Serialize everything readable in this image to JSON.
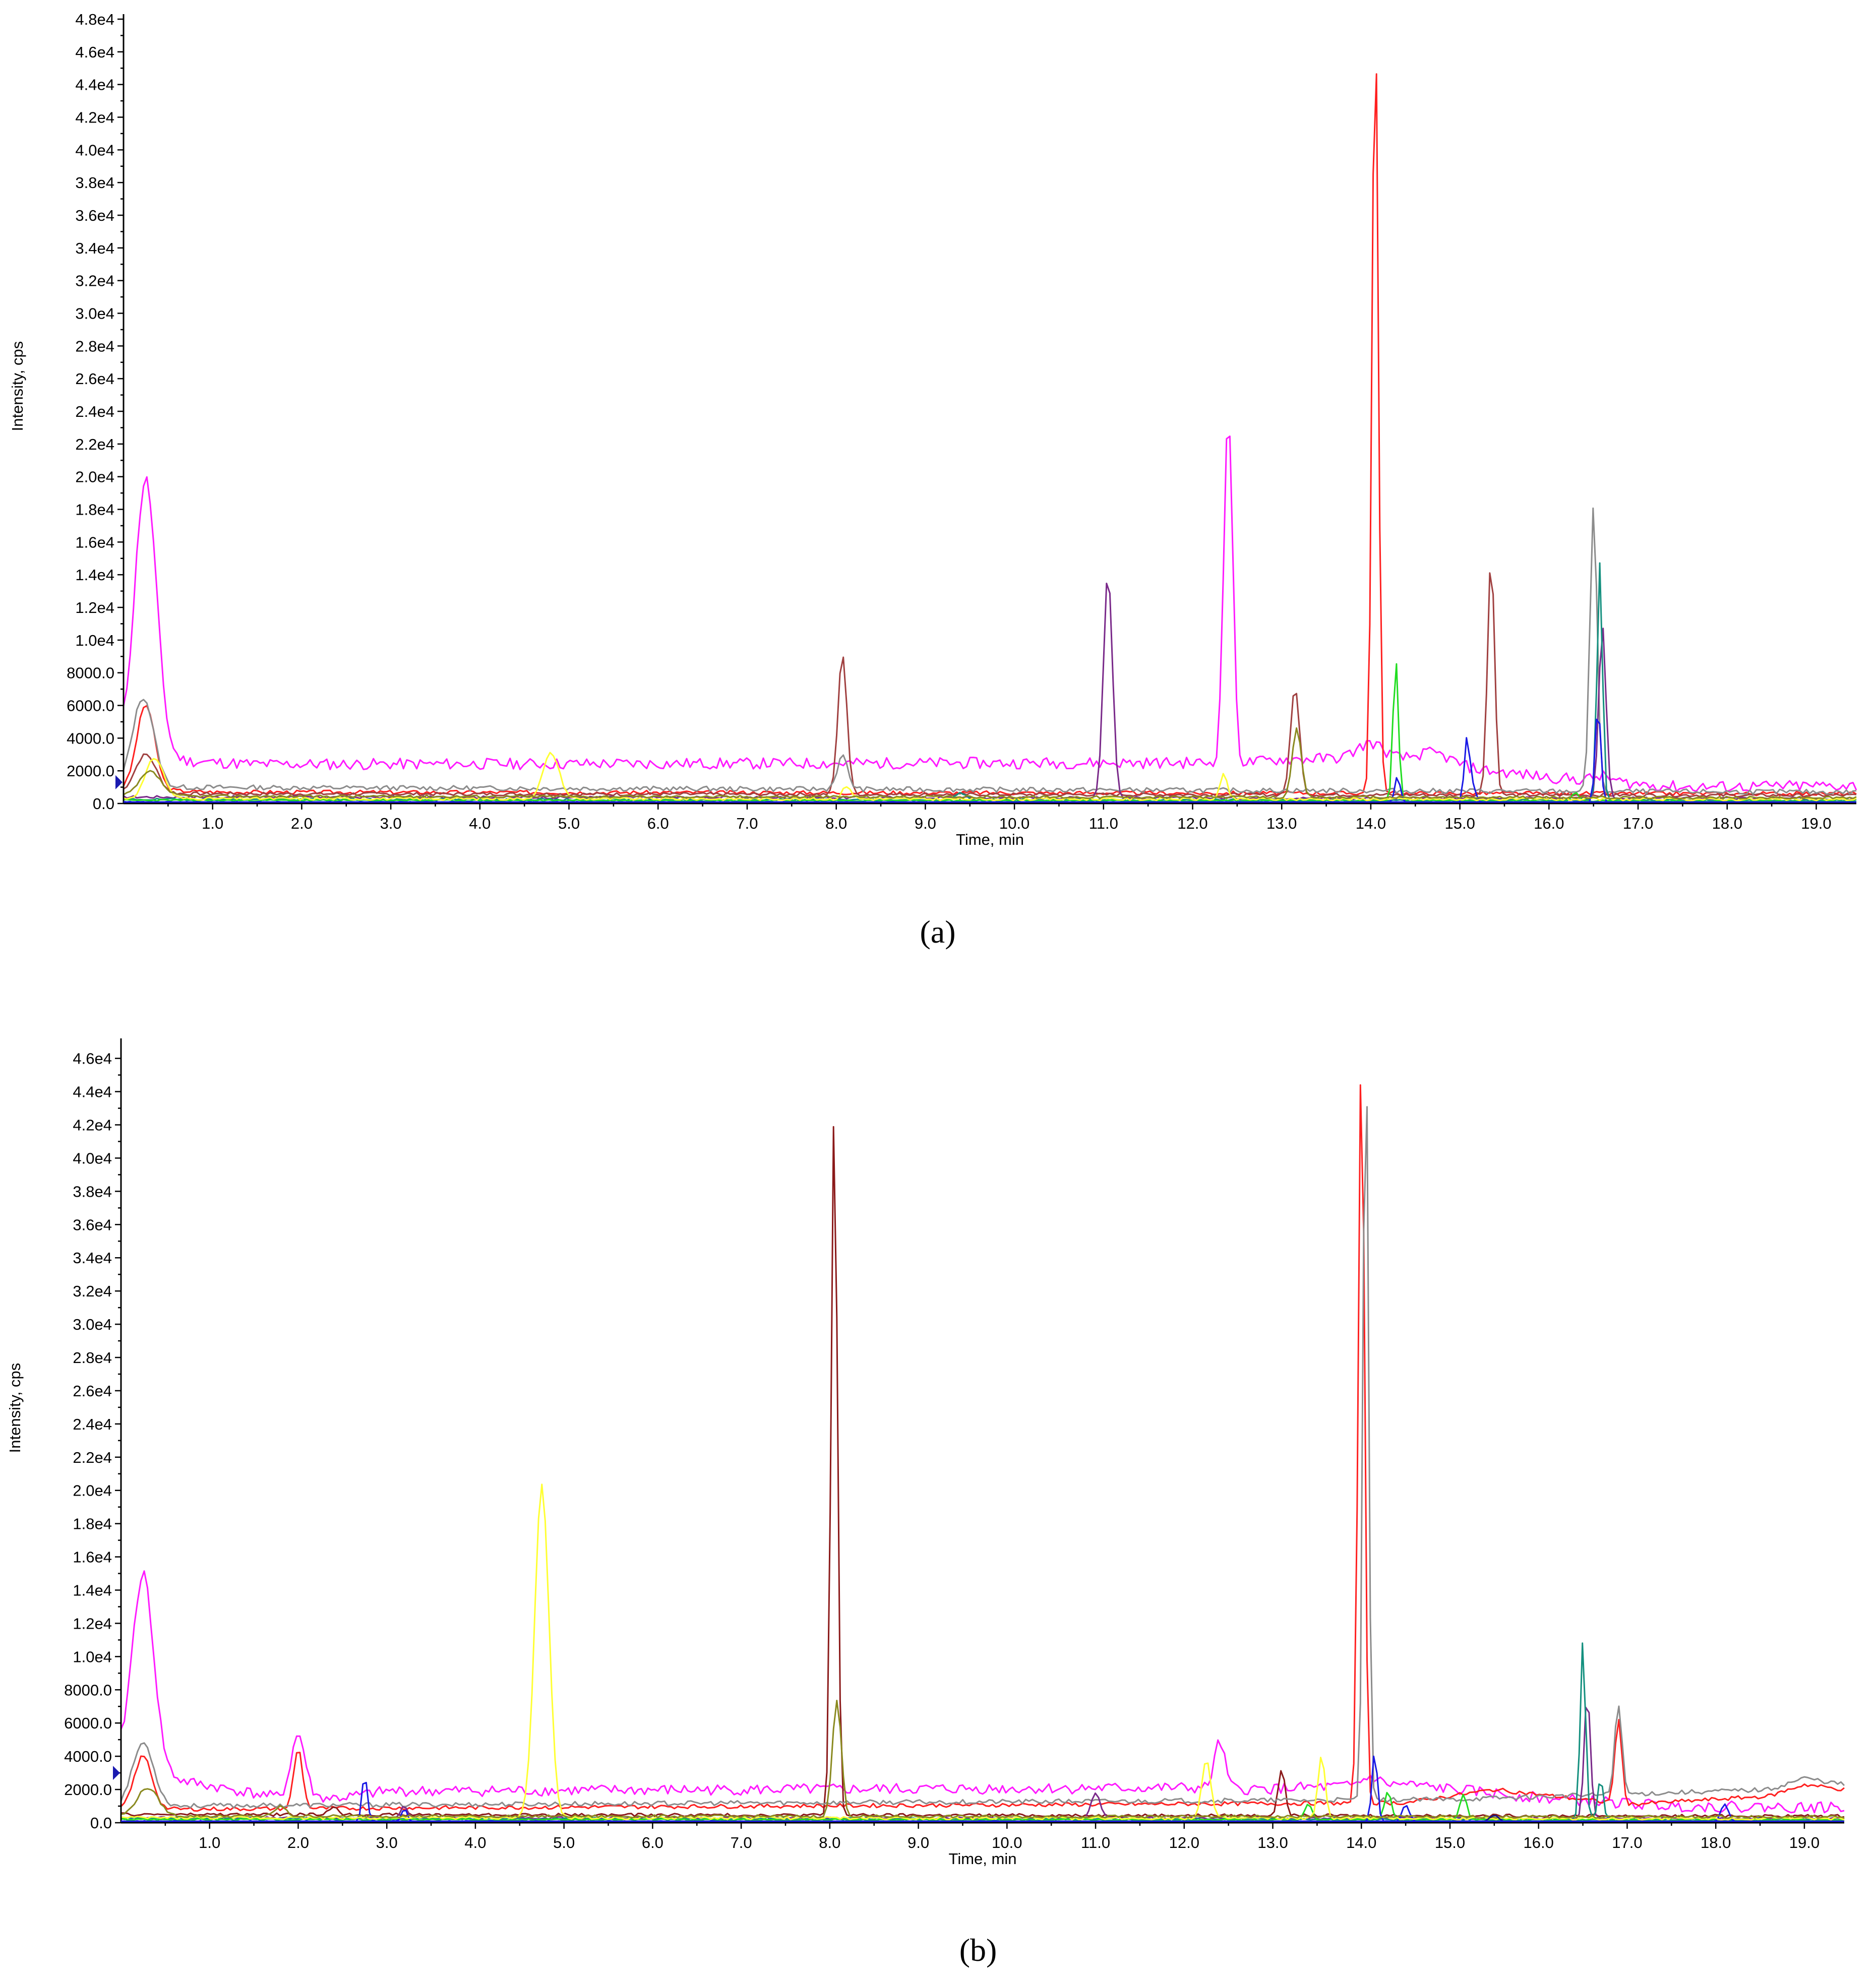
{
  "colors": {
    "magenta": "#ff1aff",
    "red": "#ff2020",
    "darkred": "#8b1a1a",
    "brown": "#a04040",
    "gray": "#8c8c8c",
    "yellow": "#ffff33",
    "green": "#22dd22",
    "teal": "#14907f",
    "blue": "#1a1ae6",
    "purple": "#7a2a8a",
    "olive": "#8a8a20",
    "navy": "#1a1a80"
  },
  "chart_data": [
    {
      "type": "line",
      "caption": "(a)",
      "xlabel": "Time, min",
      "ylabel": "Intensity, cps",
      "xlim": [
        0,
        19.45
      ],
      "ylim": [
        0,
        48000
      ],
      "x_ticks": [
        "1.0",
        "2.0",
        "3.0",
        "4.0",
        "5.0",
        "6.0",
        "7.0",
        "8.0",
        "9.0",
        "10.0",
        "11.0",
        "12.0",
        "13.0",
        "14.0",
        "15.0",
        "16.0",
        "17.0",
        "18.0",
        "19.0"
      ],
      "y_ticks": [
        {
          "v": 0,
          "label": "0.0"
        },
        {
          "v": 2000,
          "label": "2000.0"
        },
        {
          "v": 4000,
          "label": "4000.0"
        },
        {
          "v": 6000,
          "label": "6000.0"
        },
        {
          "v": 8000,
          "label": "8000.0"
        },
        {
          "v": 10000,
          "label": "1.0e4"
        },
        {
          "v": 12000,
          "label": "1.2e4"
        },
        {
          "v": 14000,
          "label": "1.4e4"
        },
        {
          "v": 16000,
          "label": "1.6e4"
        },
        {
          "v": 18000,
          "label": "1.8e4"
        },
        {
          "v": 20000,
          "label": "2.0e4"
        },
        {
          "v": 22000,
          "label": "2.2e4"
        },
        {
          "v": 24000,
          "label": "2.4e4"
        },
        {
          "v": 26000,
          "label": "2.6e4"
        },
        {
          "v": 28000,
          "label": "2.8e4"
        },
        {
          "v": 30000,
          "label": "3.0e4"
        },
        {
          "v": 32000,
          "label": "3.2e4"
        },
        {
          "v": 34000,
          "label": "3.4e4"
        },
        {
          "v": 36000,
          "label": "3.6e4"
        },
        {
          "v": 38000,
          "label": "3.8e4"
        },
        {
          "v": 40000,
          "label": "4.0e4"
        },
        {
          "v": 42000,
          "label": "4.2e4"
        },
        {
          "v": 44000,
          "label": "4.4e4"
        },
        {
          "v": 46000,
          "label": "4.6e4"
        },
        {
          "v": 48000,
          "label": "4.8e4"
        }
      ],
      "marker_y": 1300,
      "series": [
        {
          "color": "magenta",
          "base": 2400,
          "noise": 350,
          "seed": 11,
          "peaks": [
            [
              0.25,
              16500,
              0.12
            ],
            [
              12.4,
              21500,
              0.05
            ],
            [
              14.0,
              900,
              0.15
            ],
            [
              14.7,
              700,
              0.2
            ],
            [
              16.6,
              300,
              0.1
            ]
          ],
          "envelope": [
            [
              0,
              3800
            ],
            [
              0.7,
              2600
            ],
            [
              1.5,
              2400
            ],
            [
              12.6,
              2500
            ],
            [
              13.0,
              2700
            ],
            [
              14.0,
              2800
            ],
            [
              16.0,
              1600
            ],
            [
              17.5,
              1000
            ],
            [
              19.45,
              1100
            ]
          ]
        },
        {
          "color": "red",
          "base": 700,
          "noise": 120,
          "seed": 3,
          "peaks": [
            [
              0.25,
              5200,
              0.1
            ],
            [
              14.05,
              47500,
              0.035
            ]
          ],
          "envelope": [
            [
              0,
              900
            ],
            [
              1,
              700
            ],
            [
              19.45,
              600
            ]
          ]
        },
        {
          "color": "brown",
          "base": 550,
          "noise": 100,
          "seed": 7,
          "peaks": [
            [
              8.07,
              8600,
              0.05
            ],
            [
              13.15,
              6600,
              0.05
            ],
            [
              15.35,
              14500,
              0.04
            ],
            [
              0.25,
              2400,
              0.12
            ]
          ],
          "envelope": [
            [
              0,
              600
            ],
            [
              19.45,
              500
            ]
          ]
        },
        {
          "color": "gray",
          "base": 850,
          "noise": 150,
          "seed": 13,
          "peaks": [
            [
              0.22,
              5500,
              0.12
            ],
            [
              8.07,
              2000,
              0.06
            ],
            [
              16.5,
              17500,
              0.04
            ]
          ],
          "envelope": [
            [
              0,
              1000
            ],
            [
              19.45,
              700
            ]
          ]
        },
        {
          "color": "purple",
          "base": 300,
          "noise": 80,
          "seed": 17,
          "peaks": [
            [
              11.05,
              13800,
              0.05
            ],
            [
              16.6,
              10500,
              0.04
            ]
          ],
          "envelope": [
            [
              0,
              400
            ],
            [
              19.45,
              300
            ]
          ]
        },
        {
          "color": "teal",
          "base": 200,
          "noise": 60,
          "seed": 19,
          "peaks": [
            [
              16.57,
              14500,
              0.03
            ],
            [
              9.4,
              400,
              0.06
            ]
          ],
          "envelope": [
            [
              0,
              250
            ],
            [
              19.45,
              200
            ]
          ]
        },
        {
          "color": "green",
          "base": 150,
          "noise": 50,
          "seed": 23,
          "peaks": [
            [
              14.28,
              8700,
              0.03
            ],
            [
              16.3,
              500,
              0.04
            ]
          ],
          "envelope": [
            [
              0,
              200
            ],
            [
              19.45,
              150
            ]
          ]
        },
        {
          "color": "blue",
          "base": 60,
          "noise": 40,
          "seed": 29,
          "peaks": [
            [
              15.08,
              4000,
              0.03
            ],
            [
              14.3,
              1600,
              0.03
            ],
            [
              16.55,
              6000,
              0.03
            ],
            [
              15.15,
              900,
              0.03
            ]
          ],
          "envelope": [
            [
              0,
              80
            ],
            [
              19.45,
              60
            ]
          ]
        },
        {
          "color": "yellow",
          "base": 250,
          "noise": 80,
          "seed": 31,
          "peaks": [
            [
              0.35,
              2500,
              0.1
            ],
            [
              4.8,
              2800,
              0.09
            ],
            [
              8.12,
              800,
              0.05
            ],
            [
              12.35,
              1500,
              0.04
            ]
          ],
          "envelope": [
            [
              0,
              300
            ],
            [
              19.45,
              250
            ]
          ]
        },
        {
          "color": "olive",
          "base": 400,
          "noise": 80,
          "seed": 37,
          "peaks": [
            [
              13.17,
              4200,
              0.05
            ],
            [
              0.3,
              1500,
              0.12
            ]
          ],
          "envelope": [
            [
              0,
              450
            ],
            [
              19.45,
              350
            ]
          ]
        }
      ]
    },
    {
      "type": "line",
      "caption": "(b)",
      "xlabel": "Time, min",
      "ylabel": "Intensity, cps",
      "xlim": [
        0,
        19.45
      ],
      "ylim": [
        0,
        46900
      ],
      "x_ticks": [
        "1.0",
        "2.0",
        "3.0",
        "4.0",
        "5.0",
        "6.0",
        "7.0",
        "8.0",
        "9.0",
        "10.0",
        "11.0",
        "12.0",
        "13.0",
        "14.0",
        "15.0",
        "16.0",
        "17.0",
        "18.0",
        "19.0"
      ],
      "y_ticks": [
        {
          "v": 0,
          "label": "0.0"
        },
        {
          "v": 2000,
          "label": "2000.0"
        },
        {
          "v": 4000,
          "label": "4000.0"
        },
        {
          "v": 6000,
          "label": "6000.0"
        },
        {
          "v": 8000,
          "label": "8000.0"
        },
        {
          "v": 10000,
          "label": "1.0e4"
        },
        {
          "v": 12000,
          "label": "1.2e4"
        },
        {
          "v": 14000,
          "label": "1.4e4"
        },
        {
          "v": 16000,
          "label": "1.6e4"
        },
        {
          "v": 18000,
          "label": "1.8e4"
        },
        {
          "v": 20000,
          "label": "2.0e4"
        },
        {
          "v": 22000,
          "label": "2.2e4"
        },
        {
          "v": 24000,
          "label": "2.4e4"
        },
        {
          "v": 26000,
          "label": "2.6e4"
        },
        {
          "v": 28000,
          "label": "2.8e4"
        },
        {
          "v": 30000,
          "label": "3.0e4"
        },
        {
          "v": 32000,
          "label": "3.2e4"
        },
        {
          "v": 34000,
          "label": "3.4e4"
        },
        {
          "v": 36000,
          "label": "3.6e4"
        },
        {
          "v": 38000,
          "label": "3.8e4"
        },
        {
          "v": 40000,
          "label": "4.0e4"
        },
        {
          "v": 42000,
          "label": "4.2e4"
        },
        {
          "v": 44000,
          "label": "4.4e4"
        },
        {
          "v": 46000,
          "label": "4.6e4"
        }
      ],
      "marker_y": 3000,
      "series": [
        {
          "color": "magenta",
          "base": 1900,
          "noise": 330,
          "seed": 41,
          "peaks": [
            [
              0.25,
              11500,
              0.12
            ],
            [
              2.0,
              3800,
              0.08
            ],
            [
              12.4,
              2800,
              0.06
            ],
            [
              14.1,
              500,
              0.1
            ]
          ],
          "envelope": [
            [
              0,
              4000
            ],
            [
              0.7,
              2500
            ],
            [
              1.8,
              1500
            ],
            [
              2.5,
              1500
            ],
            [
              3.0,
              1900
            ],
            [
              12.0,
              2100
            ],
            [
              12.7,
              2000
            ],
            [
              14.5,
              2300
            ],
            [
              16.0,
              1500
            ],
            [
              17.5,
              1000
            ],
            [
              19.45,
              900
            ]
          ]
        },
        {
          "color": "red",
          "base": 600,
          "noise": 120,
          "seed": 43,
          "peaks": [
            [
              0.25,
              3200,
              0.1
            ],
            [
              2.0,
              3600,
              0.05
            ],
            [
              14.0,
              45500,
              0.035
            ],
            [
              16.9,
              5000,
              0.04
            ]
          ],
          "envelope": [
            [
              0,
              800
            ],
            [
              14.5,
              1200
            ],
            [
              15.5,
              2000
            ],
            [
              17.0,
              1100
            ],
            [
              18.6,
              1600
            ],
            [
              19.0,
              2300
            ],
            [
              19.45,
              2000
            ]
          ]
        },
        {
          "color": "darkred",
          "base": 450,
          "noise": 90,
          "seed": 47,
          "peaks": [
            [
              8.05,
              42500,
              0.035
            ],
            [
              13.1,
              2800,
              0.04
            ],
            [
              2.4,
              500,
              0.05
            ]
          ],
          "envelope": [
            [
              0,
              500
            ],
            [
              19.45,
              400
            ]
          ]
        },
        {
          "color": "gray",
          "base": 800,
          "noise": 140,
          "seed": 53,
          "peaks": [
            [
              0.25,
              3800,
              0.12
            ],
            [
              16.9,
              5500,
              0.04
            ],
            [
              14.05,
              46500,
              0.03
            ]
          ],
          "envelope": [
            [
              0,
              1000
            ],
            [
              15.0,
              1400
            ],
            [
              18.6,
              2000
            ],
            [
              19.0,
              2700
            ],
            [
              19.45,
              2300
            ]
          ]
        },
        {
          "color": "purple",
          "base": 250,
          "noise": 70,
          "seed": 59,
          "peaks": [
            [
              16.55,
              7500,
              0.035
            ],
            [
              11.0,
              1500,
              0.05
            ],
            [
              3.2,
              700,
              0.04
            ]
          ],
          "envelope": [
            [
              0,
              300
            ],
            [
              19.45,
              250
            ]
          ]
        },
        {
          "color": "teal",
          "base": 200,
          "noise": 60,
          "seed": 61,
          "peaks": [
            [
              16.5,
              10800,
              0.03
            ],
            [
              16.7,
              2500,
              0.03
            ]
          ],
          "envelope": [
            [
              0,
              250
            ],
            [
              19.45,
              200
            ]
          ]
        },
        {
          "color": "green",
          "base": 150,
          "noise": 50,
          "seed": 67,
          "peaks": [
            [
              14.3,
              1700,
              0.04
            ],
            [
              13.4,
              1000,
              0.04
            ],
            [
              15.15,
              1500,
              0.04
            ]
          ],
          "envelope": [
            [
              0,
              200
            ],
            [
              19.45,
              150
            ]
          ]
        },
        {
          "color": "blue",
          "base": 60,
          "noise": 40,
          "seed": 71,
          "peaks": [
            [
              2.75,
              2800,
              0.03
            ],
            [
              14.15,
              4200,
              0.03
            ],
            [
              14.5,
              1000,
              0.04
            ],
            [
              18.1,
              1100,
              0.04
            ],
            [
              3.2,
              800,
              0.03
            ]
          ],
          "envelope": [
            [
              0,
              80
            ],
            [
              19.45,
              60
            ]
          ]
        },
        {
          "color": "yellow",
          "base": 250,
          "noise": 80,
          "seed": 73,
          "peaks": [
            [
              4.75,
              20000,
              0.08
            ],
            [
              12.25,
              3500,
              0.05
            ],
            [
              13.55,
              3700,
              0.04
            ]
          ],
          "envelope": [
            [
              0,
              300
            ],
            [
              19.45,
              250
            ]
          ]
        },
        {
          "color": "olive",
          "base": 350,
          "noise": 80,
          "seed": 79,
          "peaks": [
            [
              8.08,
              7000,
              0.05
            ],
            [
              0.3,
              1700,
              0.12
            ],
            [
              1.8,
              600,
              0.06
            ]
          ],
          "envelope": [
            [
              0,
              400
            ],
            [
              19.45,
              350
            ]
          ]
        },
        {
          "color": "navy",
          "base": 50,
          "noise": 30,
          "seed": 83,
          "peaks": [
            [
              15.5,
              400,
              0.05
            ]
          ],
          "envelope": [
            [
              0,
              60
            ],
            [
              19.45,
              50
            ]
          ]
        }
      ]
    }
  ]
}
